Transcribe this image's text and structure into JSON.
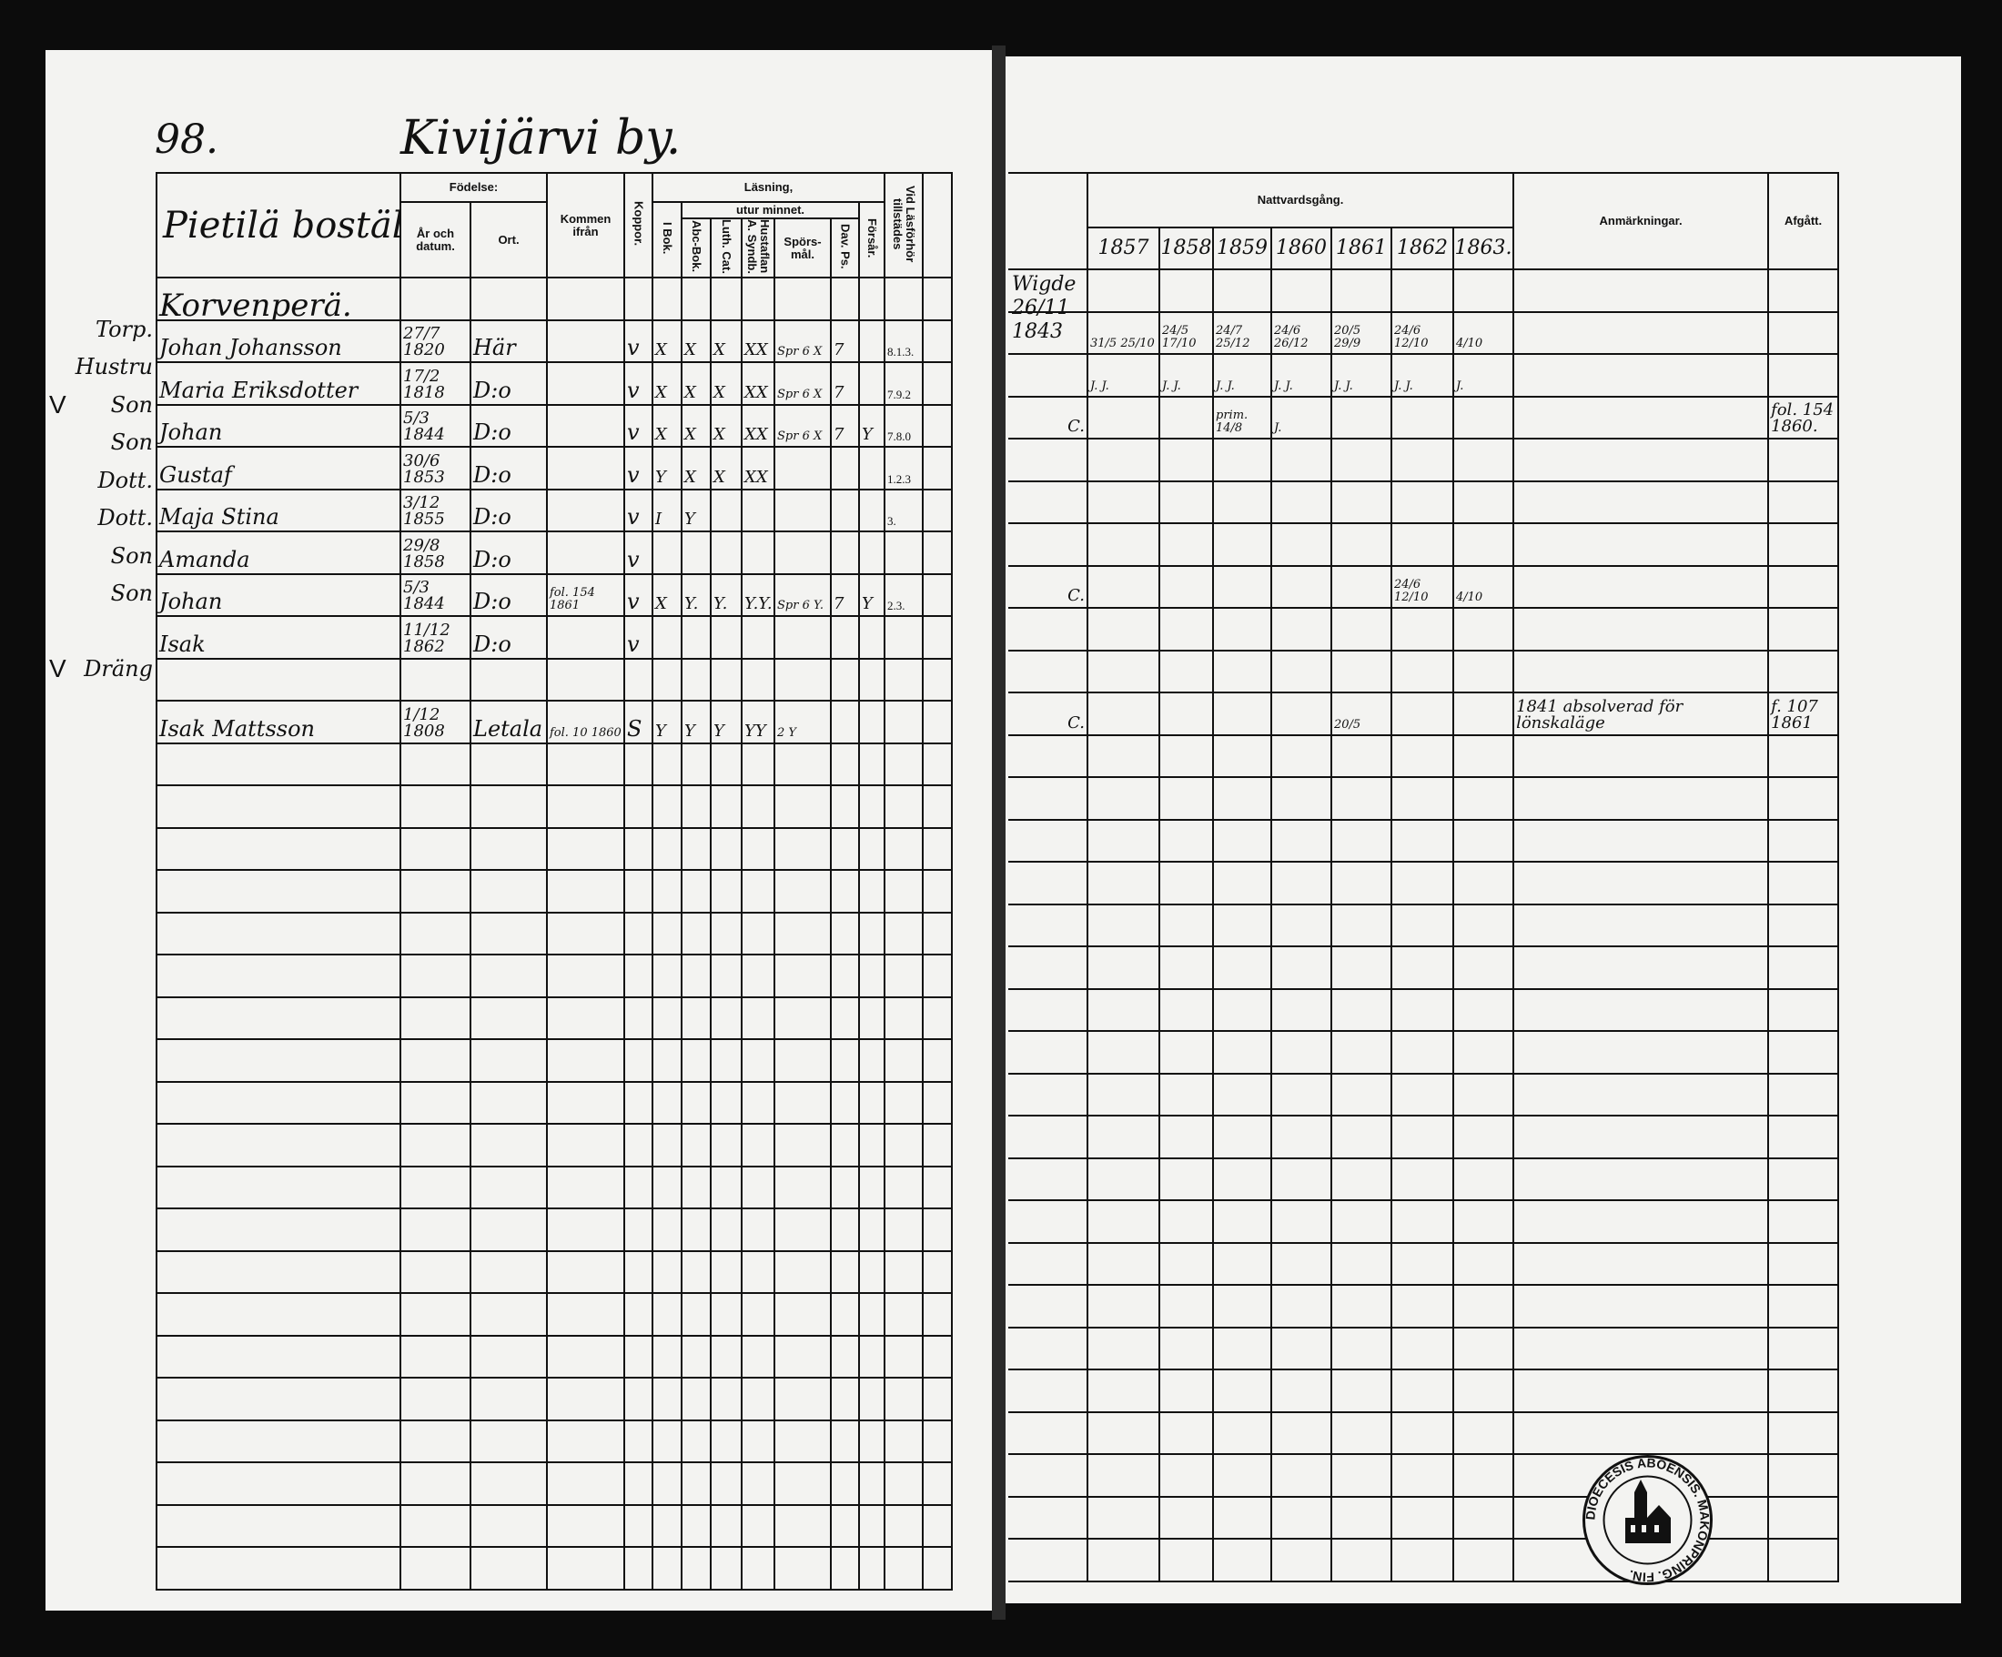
{
  "page_number": "98.",
  "title": "Kivijärvi by.",
  "left_header": {
    "household": "Pietilä boställe.",
    "fodelse": "Födelse:",
    "ar_datum": "År och datum.",
    "ort": "Ort.",
    "kommen": "Kommen ifrån",
    "koppor": "Koppor.",
    "lasning": "Läsning,",
    "i_bok": "I Bok.",
    "utur_minnet": "utur minnet.",
    "abc": "Abc-Bok.",
    "luth": "Luth. Cat.",
    "hustaflan": "Hustaflan A. Syndb.",
    "sporsmal": "Spörs-mål.",
    "dav": "Dav. Ps.",
    "forsar": "Försår.",
    "lasforhor": "Vid Läsförhör tillstädes"
  },
  "right_header": {
    "nattvard": "Nattvardsgång.",
    "years": [
      "1857",
      "1858",
      "1859",
      "1860",
      "1861",
      "1862",
      "1863."
    ],
    "anmarkningar": "Anmärkningar.",
    "afgatt": "Afgått."
  },
  "rows": [
    {
      "role": "",
      "mark": "",
      "name": "Korvenperä.",
      "born": "",
      "place": "",
      "from": "",
      "kop": "",
      "ibok": "",
      "abc": "",
      "luth": "",
      "hust": "",
      "spor": "",
      "dav": "",
      "forsar": "",
      "forhor": "",
      "extra": "",
      "c": "",
      "y": [
        "",
        "",
        "",
        "",
        "",
        "",
        ""
      ],
      "anm": "",
      "afg": ""
    },
    {
      "role": "Torp.",
      "mark": "",
      "name": "Johan Johansson",
      "born": "27/7 1820",
      "place": "Här",
      "from": "",
      "kop": "v",
      "ibok": "X",
      "abc": "X",
      "luth": "X",
      "hust": "XX",
      "spor": "Spr 6 X",
      "dav": "7",
      "forsar": "",
      "forhor": "8.1.3.",
      "extra": "",
      "c": "",
      "y": [
        "31/5 25/10",
        "24/5 17/10",
        "24/7 25/12",
        "24/6 26/12",
        "20/5 29/9",
        "24/6 12/10",
        "4/10"
      ],
      "anm": "",
      "afg": ""
    },
    {
      "role": "Hustru",
      "mark": "",
      "name": "Maria Eriksdotter",
      "born": "17/2 1818",
      "place": "D:o",
      "from": "",
      "kop": "v",
      "ibok": "X",
      "abc": "X",
      "luth": "X",
      "hust": "XX",
      "spor": "Spr 6 X",
      "dav": "7",
      "forsar": "",
      "forhor": "7.9.2",
      "extra": "",
      "c": "",
      "y": [
        "J. J.",
        "J. J.",
        "J. J.",
        "J. J.",
        "J. J.",
        "J. J.",
        "J."
      ],
      "anm": "",
      "afg": ""
    },
    {
      "role": "Son",
      "mark": "V",
      "name": "Johan",
      "born": "5/3 1844",
      "place": "D:o",
      "from": "",
      "kop": "v",
      "ibok": "X",
      "abc": "X",
      "luth": "X",
      "hust": "XX",
      "spor": "Spr 6 X",
      "dav": "7",
      "forsar": "Y",
      "forhor": "7.8.0",
      "extra": "",
      "c": "C.",
      "y": [
        "",
        "",
        "prim. 14/8",
        "J.",
        "",
        "",
        ""
      ],
      "anm": "",
      "afg": "fol. 154 1860."
    },
    {
      "role": "Son",
      "mark": "",
      "name": "Gustaf",
      "born": "30/6 1853",
      "place": "D:o",
      "from": "",
      "kop": "v",
      "ibok": "Y",
      "abc": "X",
      "luth": "X",
      "hust": "XX",
      "spor": "",
      "dav": "",
      "forsar": "",
      "forhor": "1.2.3",
      "extra": "",
      "c": "",
      "y": [
        "",
        "",
        "",
        "",
        "",
        "",
        ""
      ],
      "anm": "",
      "afg": ""
    },
    {
      "role": "Dott.",
      "mark": "",
      "name": "Maja Stina",
      "born": "3/12 1855",
      "place": "D:o",
      "from": "",
      "kop": "v",
      "ibok": "I",
      "abc": "Y",
      "luth": "",
      "hust": "",
      "spor": "",
      "dav": "",
      "forsar": "",
      "forhor": "3.",
      "extra": "",
      "c": "",
      "y": [
        "",
        "",
        "",
        "",
        "",
        "",
        ""
      ],
      "anm": "",
      "afg": ""
    },
    {
      "role": "Dott.",
      "mark": "",
      "name": "Amanda",
      "born": "29/8 1858",
      "place": "D:o",
      "from": "",
      "kop": "v",
      "ibok": "",
      "abc": "",
      "luth": "",
      "hust": "",
      "spor": "",
      "dav": "",
      "forsar": "",
      "forhor": "",
      "extra": "",
      "c": "",
      "y": [
        "",
        "",
        "",
        "",
        "",
        "",
        ""
      ],
      "anm": "",
      "afg": ""
    },
    {
      "role": "Son",
      "mark": "",
      "name": "Johan",
      "born": "5/3 1844",
      "place": "D:o",
      "from": "fol. 154 1861",
      "kop": "v",
      "ibok": "X",
      "abc": "Y.",
      "luth": "Y.",
      "hust": "Y.Y.",
      "spor": "Spr 6 Y.",
      "dav": "7",
      "forsar": "Y",
      "forhor": "2.3.",
      "extra": "",
      "c": "C.",
      "y": [
        "",
        "",
        "",
        "",
        "",
        "24/6 12/10",
        "4/10"
      ],
      "anm": "",
      "afg": ""
    },
    {
      "role": "Son",
      "mark": "",
      "name": "Isak",
      "born": "11/12 1862",
      "place": "D:o",
      "from": "",
      "kop": "v",
      "ibok": "",
      "abc": "",
      "luth": "",
      "hust": "",
      "spor": "",
      "dav": "",
      "forsar": "",
      "forhor": "",
      "extra": "",
      "c": "",
      "y": [
        "",
        "",
        "",
        "",
        "",
        "",
        ""
      ],
      "anm": "",
      "afg": ""
    },
    {
      "role": "",
      "mark": "",
      "name": "",
      "born": "",
      "place": "",
      "from": "",
      "kop": "",
      "ibok": "",
      "abc": "",
      "luth": "",
      "hust": "",
      "spor": "",
      "dav": "",
      "forsar": "",
      "forhor": "",
      "extra": "",
      "c": "",
      "y": [
        "",
        "",
        "",
        "",
        "",
        "",
        ""
      ],
      "anm": "",
      "afg": ""
    },
    {
      "role": "Dräng",
      "mark": "V",
      "name": "Isak Mattsson",
      "born": "1/12 1808",
      "place": "Letala",
      "from": "fol. 10 1860",
      "kop": "S",
      "ibok": "Y",
      "abc": "Y",
      "luth": "Y",
      "hust": "YY",
      "spor": "2 Y",
      "dav": "",
      "forsar": "",
      "forhor": "",
      "extra": "",
      "c": "C.",
      "y": [
        "",
        "",
        "",
        "",
        "20/5",
        "",
        ""
      ],
      "anm": "1841 absolverad för lönskaläge",
      "afg": "f. 107 1861"
    }
  ],
  "marriage_note": "Wigde 26/11 1843",
  "stamp": {
    "text": "DIOECESIS ABOENSIS. MAKONPRING. FIN.",
    "color": "#111111"
  },
  "colors": {
    "paper": "#f3f3f1",
    "ink": "#111111",
    "background": "#0c0c0c"
  }
}
